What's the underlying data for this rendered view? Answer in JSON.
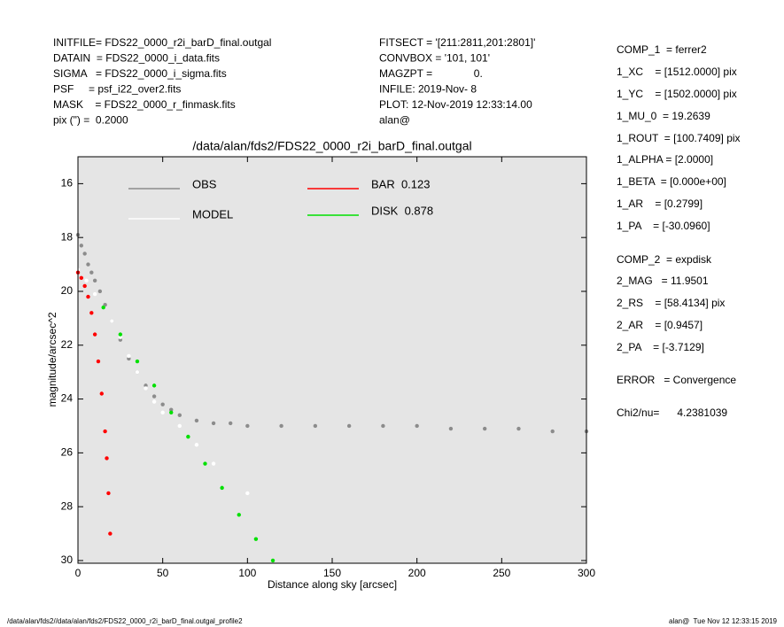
{
  "chart_data": {
    "type": "scatter",
    "title": "/data/alan/fds2/FDS22_0000_r2i_barD_final.outgal",
    "xlabel": "Distance along sky [arcsec]",
    "ylabel": "magnitude/arcsec^2",
    "xlim": [
      0,
      300
    ],
    "xticks": [
      0,
      50,
      100,
      150,
      200,
      250,
      300
    ],
    "ylim": [
      30.1,
      15
    ],
    "yticks": [
      16,
      18,
      20,
      22,
      24,
      26,
      28,
      30
    ],
    "series": [
      {
        "name": "OBS",
        "color": "#8c8c8c",
        "x": [
          0,
          2,
          4,
          6,
          8,
          10,
          13,
          16,
          20,
          25,
          30,
          35,
          40,
          45,
          50,
          55,
          60,
          70,
          80,
          90,
          100,
          120,
          140,
          160,
          180,
          200,
          220,
          240,
          260,
          280,
          300
        ],
        "values": [
          17.9,
          18.3,
          18.6,
          19.0,
          19.3,
          19.6,
          20.0,
          20.5,
          21.1,
          21.8,
          22.5,
          23.0,
          23.5,
          23.9,
          24.2,
          24.4,
          24.6,
          24.8,
          24.9,
          24.9,
          25.0,
          25.0,
          25.0,
          25.0,
          25.0,
          25.0,
          25.1,
          25.1,
          25.1,
          25.2,
          25.2
        ]
      },
      {
        "name": "MODEL",
        "color": "#ffffff",
        "x": [
          0,
          5,
          10,
          15,
          20,
          25,
          30,
          35,
          40,
          45,
          50,
          60,
          70,
          80,
          100
        ],
        "values": [
          19.2,
          19.6,
          20.1,
          20.6,
          21.1,
          21.7,
          22.4,
          23.0,
          23.6,
          24.1,
          24.5,
          25.0,
          25.7,
          26.4,
          27.5
        ]
      },
      {
        "name": "BAR  0.123",
        "color": "#ff0000",
        "x": [
          0,
          2,
          4,
          6,
          8,
          10,
          12,
          14,
          16,
          17,
          18,
          19
        ],
        "values": [
          19.3,
          19.5,
          19.8,
          20.2,
          20.8,
          21.6,
          22.6,
          23.8,
          25.2,
          26.2,
          27.5,
          29.0
        ]
      },
      {
        "name": "DISK  0.878",
        "color": "#00e000",
        "x": [
          15,
          25,
          35,
          45,
          55,
          65,
          75,
          85,
          95,
          105,
          115
        ],
        "values": [
          20.6,
          21.6,
          22.6,
          23.5,
          24.5,
          25.4,
          26.4,
          27.3,
          28.3,
          29.2,
          30.0
        ]
      }
    ]
  },
  "info": {
    "left": [
      "INITFILE= FDS22_0000_r2i_barD_final.outgal",
      "DATAIN  = FDS22_0000_i_data.fits",
      "SIGMA   = FDS22_0000_i_sigma.fits",
      "PSF     = psf_i22_over2.fits",
      "MASK    = FDS22_0000_r_finmask.fits",
      "pix (\") =  0.2000"
    ],
    "middle": [
      "FITSECT = '[211:2811,201:2801]'",
      "CONVBOX = '101, 101'",
      "MAGZPT =              0.",
      "INFILE: 2019-Nov- 8",
      "PLOT: 12-Nov-2019 12:33:14.00",
      "alan@"
    ],
    "right": [
      "COMP_1  = ferrer2",
      "1_XC    = [1512.0000] pix",
      "1_YC    = [1502.0000] pix",
      "1_MU_0  = 19.2639",
      "1_ROUT  = [100.7409] pix",
      "1_ALPHA = [2.0000]",
      "1_BETA  = [0.000e+00]",
      "1_AR    = [0.2799]",
      "1_PA    = [-30.0960]",
      "COMP_2  = expdisk",
      "2_MAG   = 11.9501",
      "2_RS    = [58.4134] pix",
      "2_AR    = [0.9457]",
      "2_PA    = [-3.7129]",
      "ERROR   = Convergence",
      "Chi2/nu=      4.2381039"
    ]
  },
  "footer": {
    "left": "/data/alan/fds2//data/alan/fds2/FDS22_0000_r2i_barD_final.outgal_profile2",
    "right": "alan@  Tue Nov 12 12:33:15 2019"
  }
}
